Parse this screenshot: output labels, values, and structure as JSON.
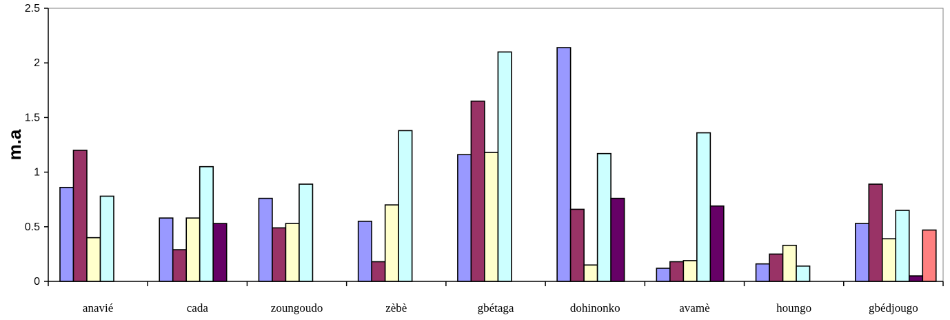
{
  "chart_data": {
    "type": "bar",
    "title": "",
    "xlabel": "",
    "ylabel": "m.a",
    "ylim": [
      0,
      2.5
    ],
    "yticks": [
      0,
      0.5,
      1,
      1.5,
      2,
      2.5
    ],
    "grid": false,
    "legend": "none",
    "categories": [
      "anavié",
      "cada",
      "zoungoudo",
      "zèbè",
      "gbétaga",
      "dohinonko",
      "avamè",
      "houngo",
      "gbédjougo"
    ],
    "series": [
      {
        "color": "#9999ff",
        "values": [
          0.86,
          0.58,
          0.76,
          0.55,
          1.16,
          2.14,
          0.12,
          0.16,
          0.53
        ]
      },
      {
        "color": "#993366",
        "values": [
          1.2,
          0.29,
          0.49,
          0.18,
          1.65,
          0.66,
          0.18,
          0.25,
          0.89
        ]
      },
      {
        "color": "#ffffcc",
        "values": [
          0.4,
          0.58,
          0.53,
          0.7,
          1.18,
          0.15,
          0.19,
          0.33,
          0.39
        ]
      },
      {
        "color": "#ccffff",
        "values": [
          0.78,
          1.05,
          0.89,
          1.38,
          2.1,
          1.17,
          1.36,
          0.14,
          0.65
        ]
      },
      {
        "color": "#660066",
        "values": [
          0,
          0.53,
          0,
          0,
          0,
          0.76,
          0.69,
          0,
          0.05
        ]
      },
      {
        "color": "#ff8080",
        "values": [
          0,
          0,
          0,
          0,
          0,
          0,
          0,
          0,
          0.47
        ]
      }
    ]
  }
}
